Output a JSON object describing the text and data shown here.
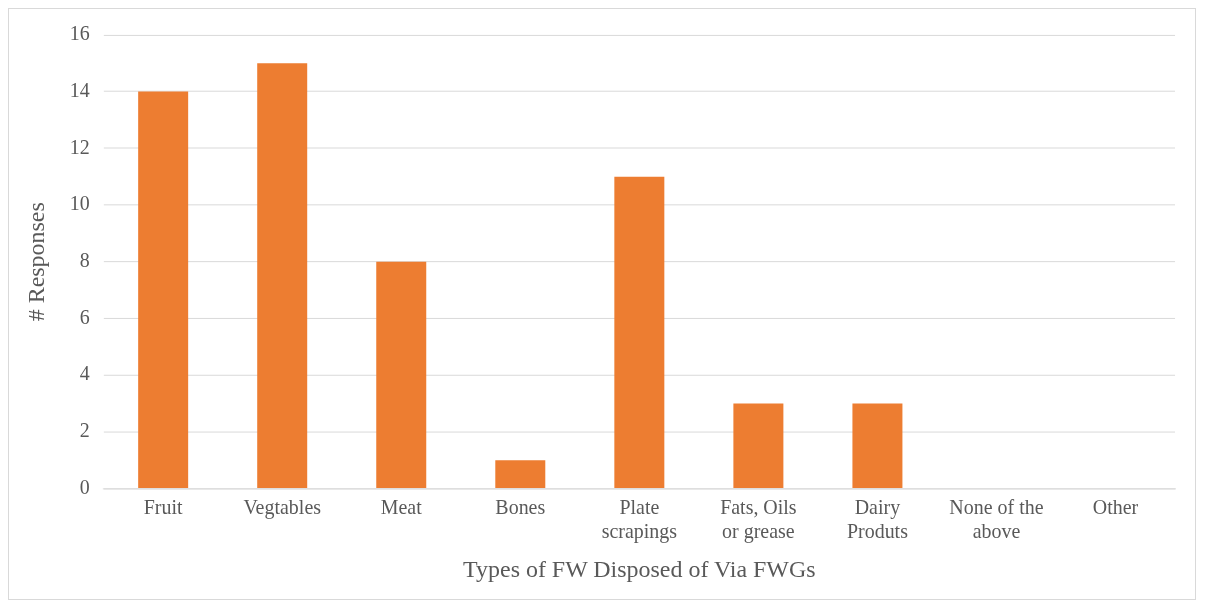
{
  "chart_data": {
    "type": "bar",
    "xlabel": "Types of FW Disposed of Via FWGs",
    "ylabel": "# Responses",
    "categories": [
      "Fruit",
      "Vegtables",
      "Meat",
      "Bones",
      "Plate scrapings",
      "Fats, Oils or grease",
      "Dairy Produts",
      "None of the above",
      "Other"
    ],
    "series": [
      {
        "color": "#ed7d31",
        "values": [
          14,
          15,
          8,
          1,
          11,
          3,
          3,
          0,
          0
        ]
      }
    ],
    "ylim": [
      0,
      16
    ],
    "yticks": [
      0,
      2,
      4,
      6,
      8,
      10,
      12,
      14,
      16
    ],
    "grid": "y",
    "legend": false
  }
}
